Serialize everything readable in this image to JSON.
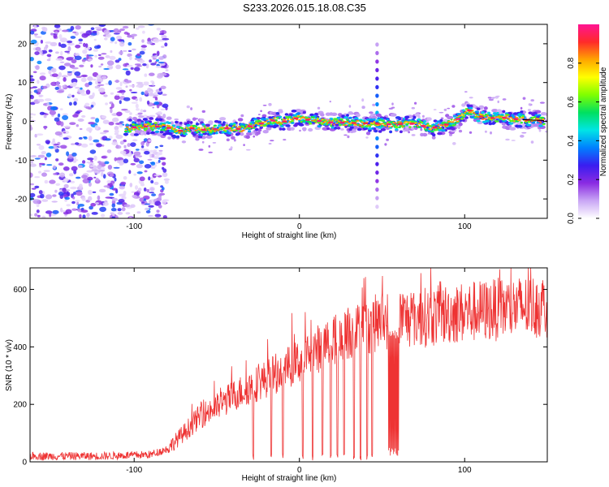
{
  "figure": {
    "title": "S233.2026.015.18.08.C35"
  },
  "chart_data": [
    {
      "type": "heatmap",
      "xlabel": "Height of straight line (km)",
      "ylabel": "Frequency (Hz)",
      "xlim": [
        -163,
        150
      ],
      "ylim": [
        -25,
        25
      ],
      "xticks": [
        -100,
        0,
        100
      ],
      "xtick_labels": [
        "-100",
        "0",
        "100"
      ],
      "yticks": [
        20,
        10,
        0,
        -10,
        -20
      ],
      "ytick_labels": [
        "20",
        "10",
        "0",
        "-10",
        "-20"
      ],
      "ridge": {
        "x": [
          -110,
          -100,
          -90,
          -80,
          -72,
          -65,
          -58,
          -50,
          -42,
          -35,
          -28,
          -20,
          -15,
          -10,
          -5,
          0,
          5,
          10,
          20,
          30,
          40,
          47,
          55,
          70,
          80,
          88,
          95,
          100,
          103,
          108,
          115,
          122,
          130,
          137,
          145
        ],
        "y": [
          -2.0,
          -1.6,
          -1.2,
          -1.6,
          -2.4,
          -1.8,
          -2.2,
          -2.0,
          -1.8,
          -2.0,
          -1.0,
          -0.3,
          0.3,
          -0.2,
          0.6,
          0.9,
          0.4,
          0.2,
          -0.3,
          -0.4,
          -0.5,
          -0.6,
          -0.8,
          -0.6,
          -1.8,
          -1.0,
          0.2,
          2.2,
          2.8,
          1.4,
          0.8,
          1.0,
          0.6,
          0.4,
          0.2
        ]
      },
      "colorbar": {
        "label": "Normalized spectral amplitude",
        "range": [
          0,
          1
        ],
        "ticks": [
          0.0,
          0.2,
          0.4,
          0.6,
          0.8
        ],
        "tick_labels": [
          "0.0",
          "0.2",
          "0.4",
          "0.6",
          "0.8"
        ],
        "colors": [
          "#ffffff",
          "#c9a6f5",
          "#8a2be2",
          "#3a1df0",
          "#0080ff",
          "#00e5e5",
          "#00e060",
          "#7fff00",
          "#ffff00",
          "#ffa500",
          "#ff2a2a",
          "#ff1493"
        ]
      }
    },
    {
      "type": "line",
      "xlabel": "Height of straight line (km)",
      "ylabel": "SNR (10 * v/v)",
      "xlim": [
        -163,
        150
      ],
      "ylim": [
        0,
        675
      ],
      "xticks": [
        -100,
        0,
        100
      ],
      "xtick_labels": [
        "-100",
        "0",
        "100"
      ],
      "yticks": [
        0,
        200,
        400,
        600
      ],
      "ytick_labels": [
        "0",
        "200",
        "400",
        "600"
      ],
      "color": "#ee3333",
      "trend": {
        "x": [
          -163,
          -120,
          -90,
          -80,
          -70,
          -60,
          -50,
          -40,
          -30,
          -20,
          -10,
          0,
          10,
          20,
          30,
          40,
          50,
          60,
          70,
          80,
          90,
          100,
          110,
          120,
          130,
          140,
          150
        ],
        "y": [
          20,
          20,
          25,
          45,
          100,
          160,
          190,
          230,
          260,
          290,
          320,
          350,
          390,
          420,
          445,
          470,
          490,
          500,
          500,
          505,
          515,
          520,
          525,
          530,
          535,
          540,
          545
        ]
      },
      "dropouts": [
        -28,
        -17,
        -10,
        2,
        8,
        14,
        19,
        23,
        27,
        33,
        37,
        41,
        44
      ],
      "gap": [
        54,
        60
      ]
    }
  ]
}
